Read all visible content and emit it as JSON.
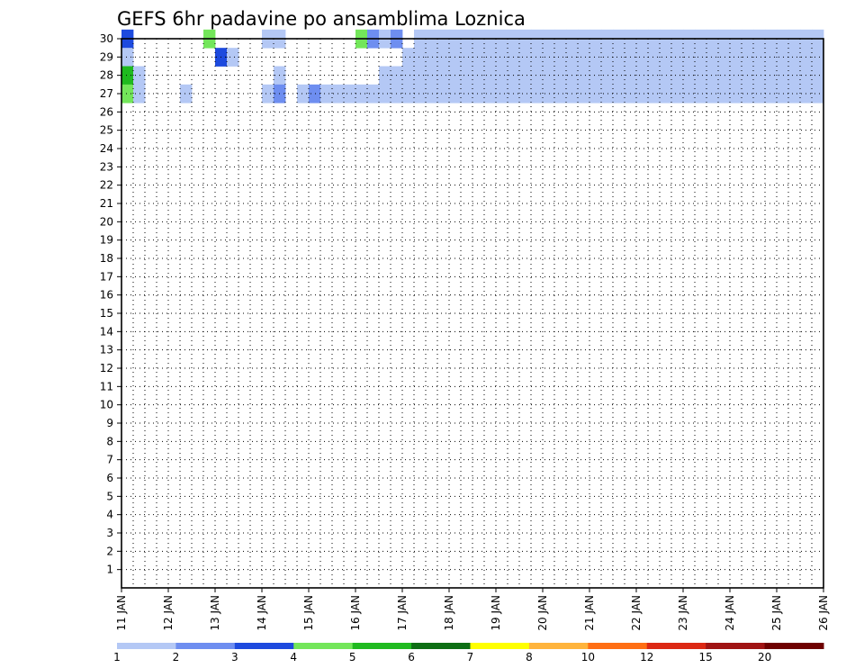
{
  "chart_data": {
    "type": "heatmap",
    "title": "GEFS 6hr padavine po ansamblima Loznica",
    "x_tick_labels": [
      "11 JAN",
      "12 JAN",
      "13 JAN",
      "14 JAN",
      "15 JAN",
      "16 JAN",
      "17 JAN",
      "18 JAN",
      "19 JAN",
      "20 JAN",
      "21 JAN",
      "22 JAN",
      "23 JAN",
      "24 JAN",
      "25 JAN",
      "26 JAN"
    ],
    "y_tick_labels": [
      "1",
      "2",
      "3",
      "4",
      "5",
      "6",
      "7",
      "8",
      "9",
      "10",
      "11",
      "12",
      "13",
      "14",
      "15",
      "16",
      "17",
      "18",
      "19",
      "20",
      "21",
      "22",
      "23",
      "24",
      "25",
      "26",
      "27",
      "28",
      "29",
      "30"
    ],
    "xlim": [
      0,
      60
    ],
    "ylim": [
      0,
      30
    ],
    "grid": true,
    "colorbar": {
      "labels": [
        "1",
        "2",
        "3",
        "4",
        "5",
        "6",
        "7",
        "8",
        "10",
        "12",
        "15",
        "20"
      ],
      "colors": [
        "#b4c8f5",
        "#6e8ef0",
        "#1d4ade",
        "#73e65a",
        "#1fba1f",
        "#0d6e14",
        "#ffff00",
        "#ffb43c",
        "#ff6e14",
        "#dc2814",
        "#a01414",
        "#6e0000"
      ]
    },
    "columns_note": "time step index: 0 = 11 JAN 00z, 4 steps per day",
    "cells": [
      [
        30,
        0,
        3
      ],
      [
        30,
        7,
        4
      ],
      [
        30,
        12,
        1
      ],
      [
        30,
        13,
        1
      ],
      [
        30,
        20,
        4
      ],
      [
        30,
        21,
        2
      ],
      [
        30,
        22,
        1
      ],
      [
        30,
        23,
        2
      ],
      [
        30,
        25,
        1
      ],
      [
        30,
        26,
        1
      ],
      [
        30,
        27,
        1
      ],
      [
        30,
        28,
        1
      ],
      [
        30,
        29,
        1
      ],
      [
        30,
        30,
        1
      ],
      [
        30,
        31,
        1
      ],
      [
        30,
        32,
        1
      ],
      [
        30,
        33,
        1
      ],
      [
        30,
        34,
        1
      ],
      [
        30,
        35,
        1
      ],
      [
        30,
        36,
        1
      ],
      [
        30,
        37,
        1
      ],
      [
        30,
        38,
        1
      ],
      [
        30,
        39,
        1
      ],
      [
        30,
        40,
        1
      ],
      [
        30,
        41,
        1
      ],
      [
        30,
        42,
        1
      ],
      [
        30,
        43,
        1
      ],
      [
        30,
        44,
        1
      ],
      [
        30,
        45,
        1
      ],
      [
        30,
        46,
        1
      ],
      [
        30,
        47,
        1
      ],
      [
        30,
        48,
        1
      ],
      [
        30,
        49,
        1
      ],
      [
        30,
        50,
        1
      ],
      [
        30,
        51,
        1
      ],
      [
        30,
        52,
        1
      ],
      [
        30,
        53,
        1
      ],
      [
        30,
        54,
        1
      ],
      [
        30,
        55,
        1
      ],
      [
        30,
        56,
        1
      ],
      [
        30,
        57,
        1
      ],
      [
        30,
        58,
        1
      ],
      [
        30,
        59,
        1
      ],
      [
        29,
        0,
        1
      ],
      [
        29,
        8,
        3
      ],
      [
        29,
        9,
        1
      ],
      [
        29,
        24,
        1
      ],
      [
        29,
        25,
        1
      ],
      [
        29,
        26,
        1
      ],
      [
        29,
        27,
        1
      ],
      [
        29,
        28,
        1
      ],
      [
        29,
        29,
        1
      ],
      [
        29,
        30,
        1
      ],
      [
        29,
        31,
        1
      ],
      [
        29,
        32,
        1
      ],
      [
        29,
        33,
        1
      ],
      [
        29,
        34,
        1
      ],
      [
        29,
        35,
        1
      ],
      [
        29,
        36,
        1
      ],
      [
        29,
        37,
        1
      ],
      [
        29,
        38,
        1
      ],
      [
        29,
        39,
        1
      ],
      [
        29,
        40,
        1
      ],
      [
        29,
        41,
        1
      ],
      [
        29,
        42,
        1
      ],
      [
        29,
        43,
        1
      ],
      [
        29,
        44,
        1
      ],
      [
        29,
        45,
        1
      ],
      [
        29,
        46,
        1
      ],
      [
        29,
        47,
        1
      ],
      [
        29,
        48,
        1
      ],
      [
        29,
        49,
        1
      ],
      [
        29,
        50,
        1
      ],
      [
        29,
        51,
        1
      ],
      [
        29,
        52,
        1
      ],
      [
        29,
        53,
        1
      ],
      [
        29,
        54,
        1
      ],
      [
        29,
        55,
        1
      ],
      [
        29,
        56,
        1
      ],
      [
        29,
        57,
        1
      ],
      [
        29,
        58,
        1
      ],
      [
        29,
        59,
        1
      ],
      [
        28,
        0,
        5
      ],
      [
        28,
        1,
        1
      ],
      [
        28,
        13,
        1
      ],
      [
        28,
        22,
        1
      ],
      [
        28,
        23,
        1
      ],
      [
        28,
        24,
        1
      ],
      [
        28,
        25,
        1
      ],
      [
        28,
        26,
        1
      ],
      [
        28,
        27,
        1
      ],
      [
        28,
        28,
        1
      ],
      [
        28,
        29,
        1
      ],
      [
        28,
        30,
        1
      ],
      [
        28,
        31,
        1
      ],
      [
        28,
        32,
        1
      ],
      [
        28,
        33,
        1
      ],
      [
        28,
        34,
        1
      ],
      [
        28,
        35,
        1
      ],
      [
        28,
        36,
        1
      ],
      [
        28,
        37,
        1
      ],
      [
        28,
        38,
        1
      ],
      [
        28,
        39,
        1
      ],
      [
        28,
        40,
        1
      ],
      [
        28,
        41,
        1
      ],
      [
        28,
        42,
        1
      ],
      [
        28,
        43,
        1
      ],
      [
        28,
        44,
        1
      ],
      [
        28,
        45,
        1
      ],
      [
        28,
        46,
        1
      ],
      [
        28,
        47,
        1
      ],
      [
        28,
        48,
        1
      ],
      [
        28,
        49,
        1
      ],
      [
        28,
        50,
        1
      ],
      [
        28,
        51,
        1
      ],
      [
        28,
        52,
        1
      ],
      [
        28,
        53,
        1
      ],
      [
        28,
        54,
        1
      ],
      [
        28,
        55,
        1
      ],
      [
        28,
        56,
        1
      ],
      [
        28,
        57,
        1
      ],
      [
        28,
        58,
        1
      ],
      [
        28,
        59,
        1
      ],
      [
        27,
        0,
        4
      ],
      [
        27,
        1,
        1
      ],
      [
        27,
        5,
        1
      ],
      [
        27,
        12,
        1
      ],
      [
        27,
        13,
        2
      ],
      [
        27,
        15,
        1
      ],
      [
        27,
        16,
        2
      ],
      [
        27,
        17,
        1
      ],
      [
        27,
        18,
        1
      ],
      [
        27,
        19,
        1
      ],
      [
        27,
        20,
        1
      ],
      [
        27,
        21,
        1
      ],
      [
        27,
        22,
        1
      ],
      [
        27,
        23,
        1
      ],
      [
        27,
        24,
        1
      ],
      [
        27,
        25,
        1
      ],
      [
        27,
        26,
        1
      ],
      [
        27,
        27,
        1
      ],
      [
        27,
        28,
        1
      ],
      [
        27,
        29,
        1
      ],
      [
        27,
        30,
        1
      ],
      [
        27,
        31,
        1
      ],
      [
        27,
        32,
        1
      ],
      [
        27,
        33,
        1
      ],
      [
        27,
        34,
        1
      ],
      [
        27,
        35,
        1
      ],
      [
        27,
        36,
        1
      ],
      [
        27,
        37,
        1
      ],
      [
        27,
        38,
        1
      ],
      [
        27,
        39,
        1
      ],
      [
        27,
        40,
        1
      ],
      [
        27,
        41,
        1
      ],
      [
        27,
        42,
        1
      ],
      [
        27,
        43,
        1
      ],
      [
        27,
        44,
        1
      ],
      [
        27,
        45,
        1
      ],
      [
        27,
        46,
        1
      ],
      [
        27,
        47,
        1
      ],
      [
        27,
        48,
        1
      ],
      [
        27,
        49,
        1
      ],
      [
        27,
        50,
        1
      ],
      [
        27,
        51,
        1
      ],
      [
        27,
        52,
        1
      ],
      [
        27,
        53,
        1
      ],
      [
        27,
        54,
        1
      ],
      [
        27,
        55,
        1
      ],
      [
        27,
        56,
        1
      ],
      [
        27,
        57,
        1
      ],
      [
        27,
        58,
        1
      ],
      [
        27,
        59,
        1
      ]
    ]
  }
}
